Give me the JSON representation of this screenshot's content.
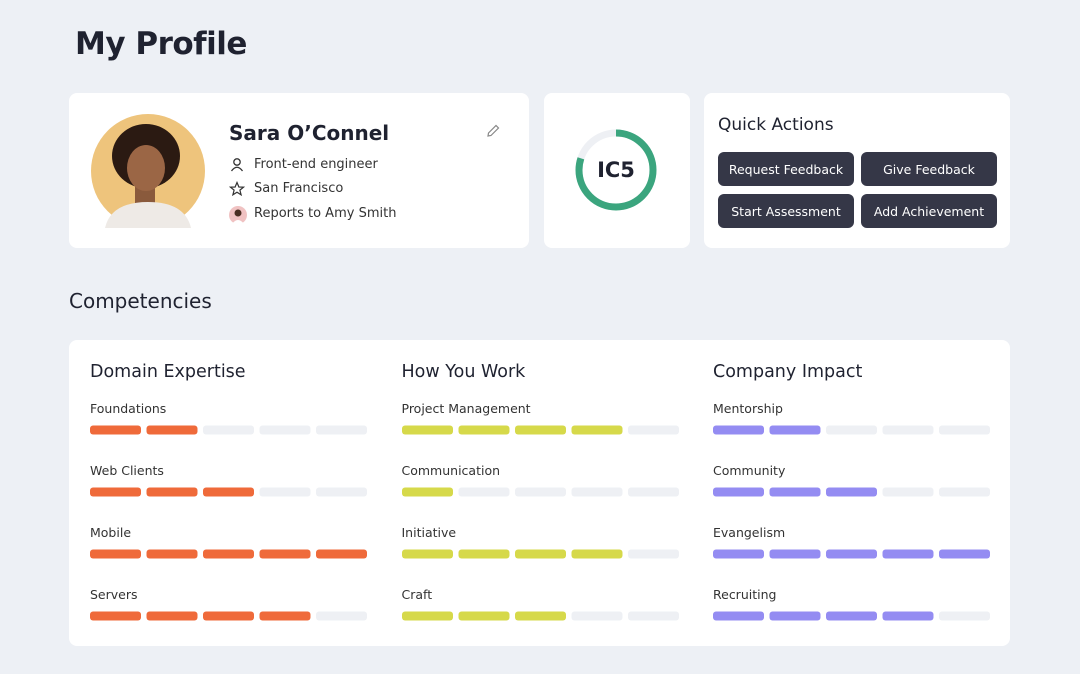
{
  "header": {
    "title": "My Profile"
  },
  "profile": {
    "name": "Sara O’Connel",
    "role": "Front-end engineer",
    "location": "San Francisco",
    "reports_to": "Reports to Amy Smith"
  },
  "level": {
    "label": "IC5",
    "progress": 80
  },
  "quick_actions": {
    "title": "Quick Actions",
    "buttons": [
      "Request Feedback",
      "Give Feedback",
      "Start Assessment",
      "Add Achievement"
    ]
  },
  "competencies": {
    "title": "Competencies",
    "max_level": 5,
    "groups": [
      {
        "name": "Domain Expertise",
        "color": "#ef6a3a",
        "items": [
          {
            "name": "Foundations",
            "level": 2
          },
          {
            "name": "Web Clients",
            "level": 3
          },
          {
            "name": "Mobile",
            "level": 5
          },
          {
            "name": "Servers",
            "level": 4
          }
        ]
      },
      {
        "name": "How You Work",
        "color": "#d6d94a",
        "items": [
          {
            "name": "Project Management",
            "level": 4
          },
          {
            "name": "Communication",
            "level": 1
          },
          {
            "name": "Initiative",
            "level": 4
          },
          {
            "name": "Craft",
            "level": 3
          }
        ]
      },
      {
        "name": "Company Impact",
        "color": "#948cf2",
        "items": [
          {
            "name": "Mentorship",
            "level": 2
          },
          {
            "name": "Community",
            "level": 3
          },
          {
            "name": "Evangelism",
            "level": 5
          },
          {
            "name": "Recruiting",
            "level": 4
          }
        ]
      }
    ]
  }
}
